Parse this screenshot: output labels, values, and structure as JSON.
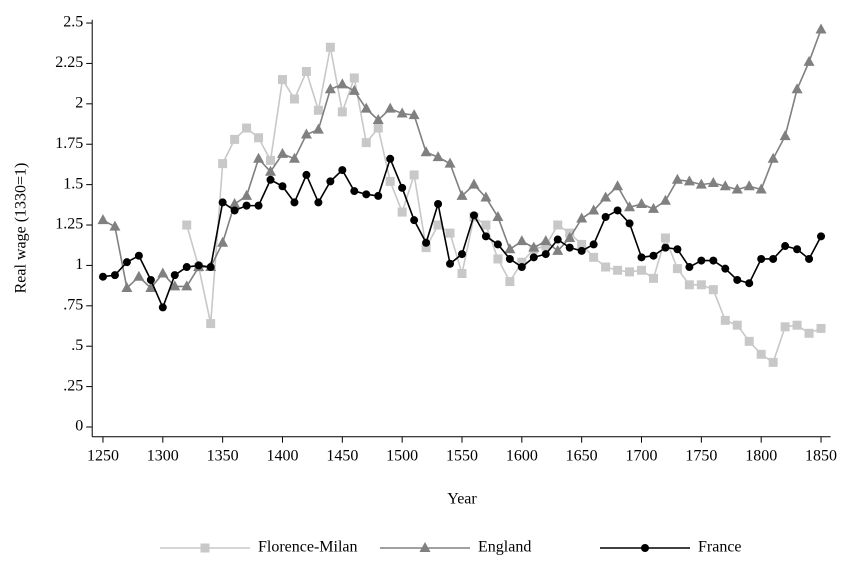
{
  "chart_data": {
    "type": "line",
    "xlabel": "Year",
    "ylabel": "Real wage (1330=1)",
    "x": [
      1250,
      1260,
      1270,
      1280,
      1290,
      1300,
      1310,
      1320,
      1330,
      1340,
      1350,
      1360,
      1370,
      1380,
      1390,
      1400,
      1410,
      1420,
      1430,
      1440,
      1450,
      1460,
      1470,
      1480,
      1490,
      1500,
      1510,
      1520,
      1530,
      1540,
      1550,
      1560,
      1570,
      1580,
      1590,
      1600,
      1610,
      1620,
      1630,
      1640,
      1650,
      1660,
      1670,
      1680,
      1690,
      1700,
      1710,
      1720,
      1730,
      1740,
      1750,
      1760,
      1770,
      1780,
      1790,
      1800,
      1810,
      1820,
      1830,
      1840,
      1850
    ],
    "series": [
      {
        "name": "Florence-Milan",
        "color": "#c8c8c8",
        "marker": "square",
        "values": [
          null,
          null,
          null,
          null,
          null,
          null,
          null,
          1.25,
          0.99,
          0.64,
          1.63,
          1.78,
          1.85,
          1.79,
          1.65,
          2.15,
          2.03,
          2.2,
          1.96,
          2.35,
          1.95,
          2.16,
          1.76,
          1.85,
          1.52,
          1.33,
          1.56,
          1.11,
          1.25,
          1.2,
          0.95,
          1.3,
          1.25,
          1.04,
          0.9,
          1.02,
          1.1,
          1.12,
          1.25,
          1.2,
          1.13,
          1.05,
          0.99,
          0.97,
          0.96,
          0.97,
          0.92,
          1.17,
          0.98,
          0.88,
          0.88,
          0.85,
          0.66,
          0.63,
          0.53,
          0.45,
          0.4,
          0.62,
          0.63,
          0.58,
          0.61
        ]
      },
      {
        "name": "England",
        "color": "#808080",
        "marker": "triangle",
        "values": [
          1.28,
          1.24,
          0.86,
          0.93,
          0.86,
          0.95,
          0.87,
          0.87,
          0.99,
          0.99,
          1.14,
          1.38,
          1.43,
          1.66,
          1.58,
          1.69,
          1.66,
          1.81,
          1.84,
          2.09,
          2.12,
          2.08,
          1.97,
          1.9,
          1.97,
          1.94,
          1.93,
          1.7,
          1.67,
          1.63,
          1.43,
          1.5,
          1.42,
          1.3,
          1.1,
          1.15,
          1.11,
          1.15,
          1.09,
          1.17,
          1.29,
          1.34,
          1.42,
          1.49,
          1.36,
          1.38,
          1.35,
          1.4,
          1.53,
          1.52,
          1.5,
          1.51,
          1.49,
          1.47,
          1.49,
          1.47,
          1.66,
          1.8,
          2.09,
          2.26,
          2.46
        ]
      },
      {
        "name": "France",
        "color": "#000000",
        "marker": "circle",
        "values": [
          0.93,
          0.94,
          1.02,
          1.06,
          0.91,
          0.74,
          0.94,
          0.99,
          1.0,
          0.99,
          1.39,
          1.34,
          1.37,
          1.37,
          1.53,
          1.49,
          1.39,
          1.56,
          1.39,
          1.52,
          1.59,
          1.46,
          1.44,
          1.43,
          1.66,
          1.48,
          1.28,
          1.14,
          1.38,
          1.01,
          1.07,
          1.31,
          1.18,
          1.13,
          1.04,
          0.99,
          1.05,
          1.07,
          1.16,
          1.11,
          1.09,
          1.13,
          1.3,
          1.34,
          1.26,
          1.05,
          1.06,
          1.11,
          1.1,
          0.99,
          1.03,
          1.03,
          0.98,
          0.91,
          0.89,
          1.04,
          1.04,
          1.12,
          1.1,
          1.04,
          1.18
        ]
      }
    ],
    "xlim": [
      1241,
      1858
    ],
    "xticks": [
      1250,
      1300,
      1350,
      1400,
      1450,
      1500,
      1550,
      1600,
      1650,
      1700,
      1750,
      1800,
      1850
    ],
    "ylim": [
      -0.06,
      2.52
    ],
    "yticks": [
      0,
      {
        "value": 0.25,
        "label": ".25"
      },
      {
        "value": 0.5,
        "label": ".5"
      },
      {
        "value": 0.75,
        "label": ".75"
      },
      1,
      1.25,
      1.5,
      1.75,
      2,
      2.25,
      2.5
    ],
    "legend": "bottom"
  }
}
